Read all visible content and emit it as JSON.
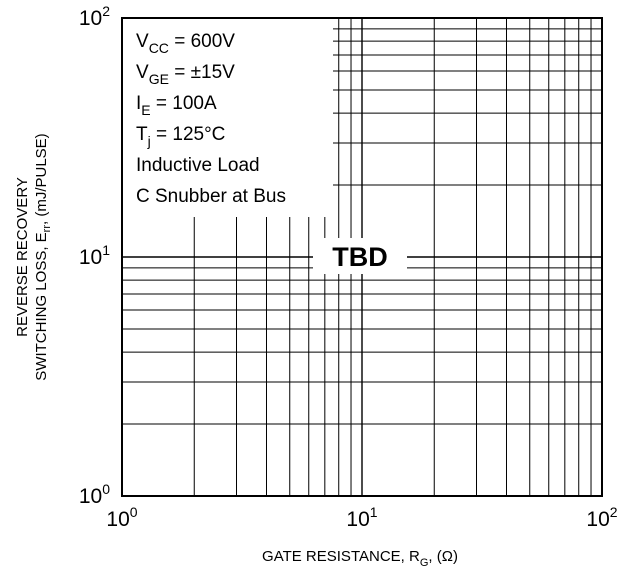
{
  "chart_data": {
    "type": "line",
    "title": "",
    "x_scale": "log",
    "y_scale": "log",
    "xlim": [
      1,
      100
    ],
    "ylim": [
      1,
      100
    ],
    "grid": true,
    "series": [],
    "x_ticks": [
      {
        "base": "10",
        "exp": "0"
      },
      {
        "base": "10",
        "exp": "1"
      },
      {
        "base": "10",
        "exp": "2"
      }
    ],
    "y_ticks": [
      {
        "base": "10",
        "exp": "0"
      },
      {
        "base": "10",
        "exp": "1"
      },
      {
        "base": "10",
        "exp": "2"
      }
    ],
    "xlabel": {
      "prefix": "GATE RESISTANCE, R",
      "sub": "G",
      "suffix": ", (Ω)"
    },
    "ylabel": {
      "line1": "REVERSE RECOVERY",
      "line2_prefix": "SWITCHING LOSS, E",
      "line2_sub": "rr",
      "line2_suffix": ", (mJ/PULSE)"
    },
    "conditions": [
      {
        "main": "V",
        "sub": "CC",
        "rest": " = 600V"
      },
      {
        "main": "V",
        "sub": "GE",
        "rest": " = ±15V"
      },
      {
        "main": "I",
        "sub": "E",
        "rest": " = 100A"
      },
      {
        "main": "T",
        "sub": "j",
        "rest": " = 125°C"
      },
      {
        "main": "Inductive Load",
        "sub": "",
        "rest": ""
      },
      {
        "main": "C Snubber at Bus",
        "sub": "",
        "rest": ""
      }
    ],
    "annotation": "TBD"
  }
}
